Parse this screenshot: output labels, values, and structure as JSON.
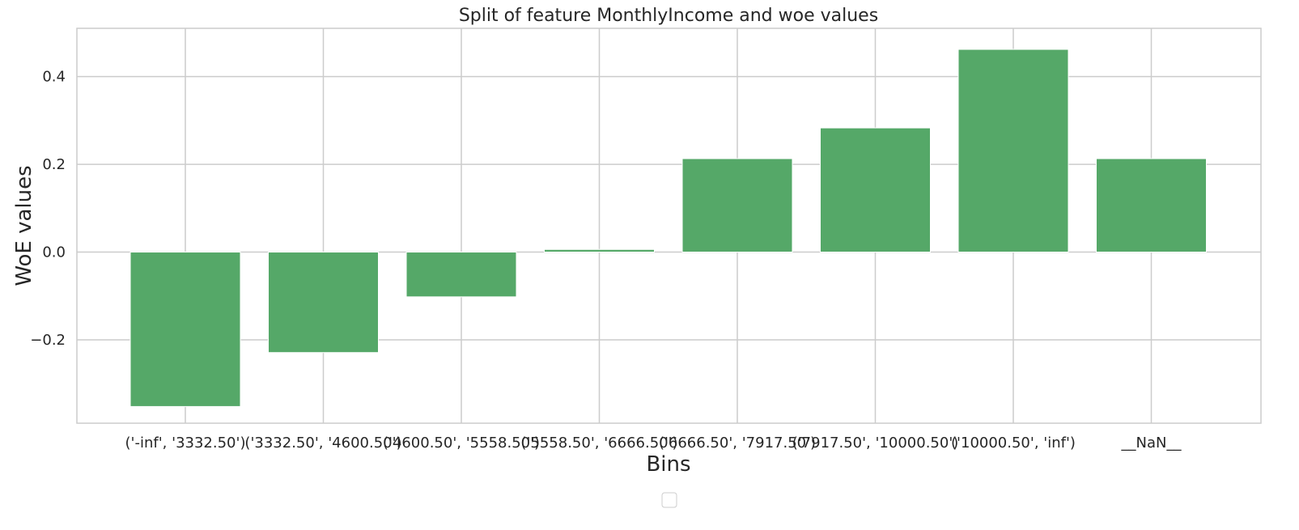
{
  "chart_data": {
    "type": "bar",
    "title": "Split of feature MonthlyIncome and woe values",
    "xlabel": "Bins",
    "ylabel": "WoE values",
    "categories": [
      "('-inf', '3332.50')",
      "('3332.50', '4600.50')",
      "('4600.50', '5558.50')",
      "('5558.50', '6666.50')",
      "('6666.50', '7917.50')",
      "('7917.50', '10000.50')",
      "('10000.50', 'inf')",
      "__NaN__"
    ],
    "values": [
      -0.352,
      -0.229,
      -0.102,
      0.006,
      0.213,
      0.283,
      0.462,
      0.213
    ],
    "ylim": [
      -0.39,
      0.51
    ],
    "yticks": [
      -0.2,
      0.0,
      0.2,
      0.4
    ],
    "ytick_labels": [
      "−0.2",
      "0.0",
      "0.2",
      "0.4"
    ],
    "grid": true,
    "legend": "bottom-center (empty)",
    "colors": {
      "bar": "#55a868",
      "grid": "#cccccc",
      "spine": "#cccccc",
      "background": "#ffffff"
    }
  }
}
